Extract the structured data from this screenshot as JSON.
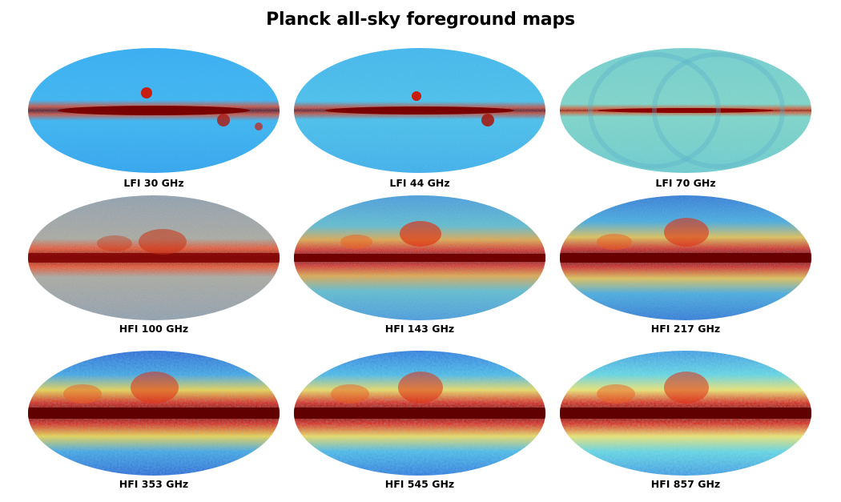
{
  "title": "Planck all-sky foreground maps",
  "maps": [
    {
      "label": "LFI 30 GHz",
      "palette": "lfi30"
    },
    {
      "label": "LFI 44 GHz",
      "palette": "lfi44"
    },
    {
      "label": "LFI 70 GHz",
      "palette": "lfi70"
    },
    {
      "label": "HFI 100 GHz",
      "palette": "hfi100"
    },
    {
      "label": "HFI 143 GHz",
      "palette": "hfi143"
    },
    {
      "label": "HFI 217 GHz",
      "palette": "hfi217"
    },
    {
      "label": "HFI 353 GHz",
      "palette": "hfi353"
    },
    {
      "label": "HFI 545 GHz",
      "palette": "hfi545"
    },
    {
      "label": "HFI 857 GHz",
      "palette": "hfi857"
    }
  ]
}
